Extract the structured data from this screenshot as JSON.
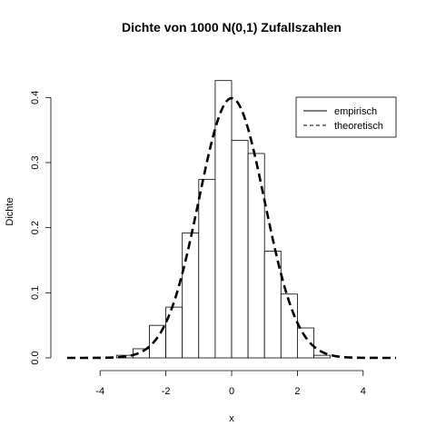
{
  "chart_data": {
    "type": "bar",
    "title": "Dichte von 1000 N(0,1) Zufallszahlen",
    "xlabel": "x",
    "ylabel": "Dichte",
    "xlim": [
      -5,
      5
    ],
    "ylim": [
      0,
      0.42
    ],
    "x_ticks": [
      -4,
      -2,
      0,
      2,
      4
    ],
    "x_tick_labels": [
      "-4",
      "-2",
      "0",
      "2",
      "4"
    ],
    "y_ticks": [
      0.0,
      0.1,
      0.2,
      0.3,
      0.4
    ],
    "y_tick_labels": [
      "0.0",
      "0.1",
      "0.2",
      "0.3",
      "0.4"
    ],
    "histogram": {
      "bin_edges": [
        -3.5,
        -3.0,
        -2.5,
        -2.0,
        -1.5,
        -1.0,
        -0.5,
        0.0,
        0.5,
        1.0,
        1.5,
        2.0,
        2.5,
        3.0
      ],
      "densities": [
        0.004,
        0.014,
        0.05,
        0.078,
        0.192,
        0.274,
        0.426,
        0.334,
        0.314,
        0.164,
        0.098,
        0.046,
        0.004
      ]
    },
    "density_curve": {
      "label": "theoretisch",
      "distribution": "normal",
      "mean": 0,
      "sd": 1,
      "x_range": [
        -5,
        5
      ],
      "line_style": "dashed"
    },
    "legend": {
      "position": "top-right",
      "entries": [
        {
          "label": "empirisch",
          "line_style": "solid"
        },
        {
          "label": "theoretisch",
          "line_style": "dashed"
        }
      ]
    },
    "grid": false
  }
}
